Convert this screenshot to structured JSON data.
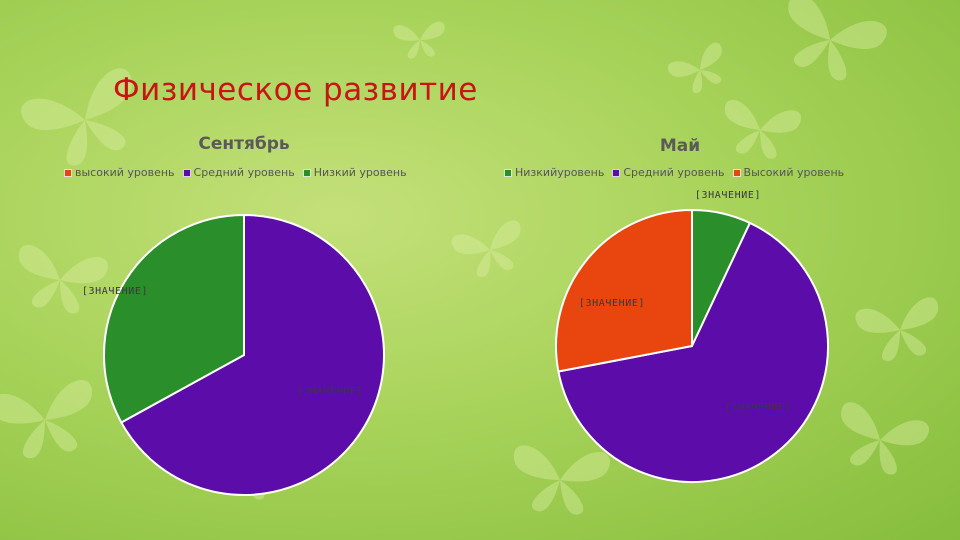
{
  "slide": {
    "title": "Физическое развитие",
    "colors": {
      "title": "#c81414",
      "background": "#a8d35a"
    }
  },
  "chart_data": [
    {
      "type": "pie",
      "title": "Сентябрь",
      "legend_position": "top",
      "legend": [
        {
          "label": "высокий уровень",
          "color": "#e8450f"
        },
        {
          "label": "Средний уровень",
          "color": "#5c0ca8"
        },
        {
          "label": "Низкий уровень",
          "color": "#2a8f2a"
        }
      ],
      "slices": [
        {
          "label": "высокий уровень",
          "value": 0,
          "color": "#e8450f",
          "data_label": ""
        },
        {
          "label": "Средний уровень",
          "value": 67,
          "color": "#5c0ca8",
          "data_label": "[ЗНАЧЕНИЕ]"
        },
        {
          "label": "Низкий уровень",
          "value": 33,
          "color": "#2a8f2a",
          "data_label": "[ЗНАЧЕНИЕ]"
        }
      ]
    },
    {
      "type": "pie",
      "title": "Май",
      "legend_position": "top",
      "legend": [
        {
          "label": "Низкийуровень",
          "color": "#2a8f2a"
        },
        {
          "label": "Средний уровень",
          "color": "#5c0ca8"
        },
        {
          "label": "Высокий уровень",
          "color": "#e8450f"
        }
      ],
      "slices": [
        {
          "label": "Низкийуровень",
          "value": 7,
          "color": "#2a8f2a",
          "data_label": "[ЗНАЧЕНИЕ]"
        },
        {
          "label": "Средний уровень",
          "value": 65,
          "color": "#5c0ca8",
          "data_label": "[ЗНАЧЕНИЕ]"
        },
        {
          "label": "Высокий уровень",
          "value": 28,
          "color": "#e8450f",
          "data_label": "[ЗНАЧЕНИЕ]"
        }
      ]
    }
  ]
}
